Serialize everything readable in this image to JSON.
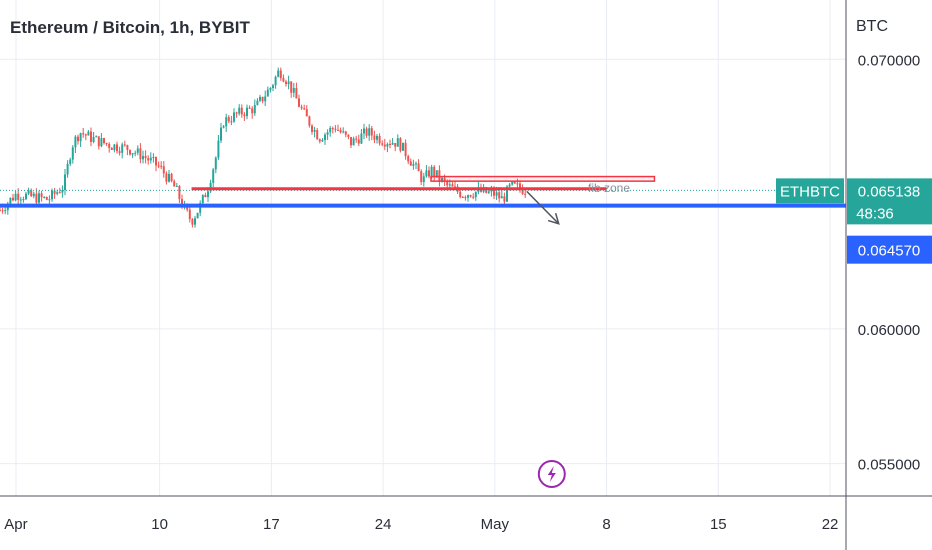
{
  "header": {
    "title": "Ethereum / Bitcoin, 1h, BYBIT"
  },
  "colors": {
    "up": "#26a69a",
    "down": "#ef5350",
    "support_line": "#2962ff",
    "resistance_line": "#f23645",
    "grid": "#e9edf3",
    "axis_text": "#2a2e39",
    "price_tag": "#26a69a",
    "level_tag": "#2962ff",
    "event_icon": "#9c27b0"
  },
  "chart_data": {
    "type": "candlestick",
    "title": "Ethereum / Bitcoin, 1h, BYBIT",
    "symbol": "ETHBTC",
    "y_unit": "BTC",
    "y_ticks": [
      "0.070000",
      "0.060000",
      "0.055000"
    ],
    "ylim": [
      0.0538,
      0.0722
    ],
    "x_ticks": [
      "Apr",
      "10",
      "17",
      "24",
      "May",
      "8",
      "15",
      "22"
    ],
    "xlim": [
      "2022-03-31",
      "2022-05-23"
    ],
    "last_price": {
      "symbol": "ETHBTC",
      "value": "0.065138",
      "countdown": "48:36"
    },
    "level_label": {
      "value": "0.064570"
    },
    "price_path": [
      [
        "2022-03-31",
        0.0644
      ],
      [
        "2022-04-01",
        0.065
      ],
      [
        "2022-04-02",
        0.0649
      ],
      [
        "2022-04-03",
        0.0648
      ],
      [
        "2022-04-04",
        0.0653
      ],
      [
        "2022-04-04T12",
        0.0668
      ],
      [
        "2022-04-05",
        0.0673
      ],
      [
        "2022-04-06",
        0.067
      ],
      [
        "2022-04-07",
        0.0668
      ],
      [
        "2022-04-08",
        0.0667
      ],
      [
        "2022-04-09",
        0.0664
      ],
      [
        "2022-04-10",
        0.066
      ],
      [
        "2022-04-11",
        0.0652
      ],
      [
        "2022-04-11T12",
        0.0645
      ],
      [
        "2022-04-12",
        0.064
      ],
      [
        "2022-04-12T12",
        0.0645
      ],
      [
        "2022-04-13",
        0.0652
      ],
      [
        "2022-04-13T12",
        0.0663
      ],
      [
        "2022-04-14",
        0.0677
      ],
      [
        "2022-04-15",
        0.068
      ],
      [
        "2022-04-16",
        0.0682
      ],
      [
        "2022-04-17",
        0.069
      ],
      [
        "2022-04-17T12",
        0.0696
      ],
      [
        "2022-04-18",
        0.0692
      ],
      [
        "2022-04-19",
        0.068
      ],
      [
        "2022-04-20",
        0.0671
      ],
      [
        "2022-04-21",
        0.0675
      ],
      [
        "2022-04-22",
        0.0669
      ],
      [
        "2022-04-23",
        0.0673
      ],
      [
        "2022-04-24",
        0.067
      ],
      [
        "2022-04-25",
        0.0669
      ],
      [
        "2022-04-26",
        0.066
      ],
      [
        "2022-04-26T12",
        0.0655
      ],
      [
        "2022-04-27",
        0.0659
      ],
      [
        "2022-04-28",
        0.0653
      ],
      [
        "2022-04-29",
        0.065
      ],
      [
        "2022-04-30",
        0.0651
      ],
      [
        "2022-05-01",
        0.065
      ],
      [
        "2022-05-01T12",
        0.0648
      ],
      [
        "2022-05-02",
        0.0653
      ],
      [
        "2022-05-03",
        0.06515
      ]
    ],
    "annotations": {
      "support_line": {
        "price": 0.06457
      },
      "resistance_line": {
        "price": 0.0652,
        "from": "2022-04-12",
        "to": "2022-05-08"
      },
      "zone_box": {
        "label": "fib zone",
        "price_top": 0.06565,
        "price_bottom": 0.06548,
        "from": "2022-04-27",
        "to": "2022-05-11"
      },
      "arrow": {
        "from": [
          "2022-05-03",
          0.0651
        ],
        "to": [
          "2022-05-05",
          0.0639
        ]
      },
      "event_marker": {
        "date": "2022-05-02",
        "icon": "lightning-icon"
      }
    },
    "grid": true
  }
}
